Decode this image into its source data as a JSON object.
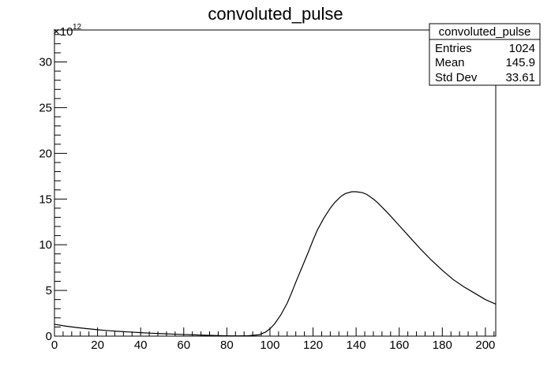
{
  "chart_data": {
    "type": "line",
    "title": "convoluted_pulse",
    "xlabel": "",
    "ylabel": "",
    "x_scale_exponent": "",
    "y_scale_label": {
      "base": "×10",
      "exponent": "12"
    },
    "xlim": [
      0,
      204.8
    ],
    "ylim": [
      0,
      33.5
    ],
    "y_unit_multiplier": 1000000000000.0,
    "x_ticks": [
      0,
      20,
      40,
      60,
      80,
      100,
      120,
      140,
      160,
      180,
      200
    ],
    "x_tick_labels": [
      "0",
      "20",
      "40",
      "60",
      "80",
      "100",
      "120",
      "140",
      "160",
      "180",
      "200"
    ],
    "y_ticks": [
      0,
      5,
      10,
      15,
      20,
      25,
      30
    ],
    "y_tick_labels": [
      "0",
      "5",
      "10",
      "15",
      "20",
      "25",
      "30"
    ],
    "grid": false,
    "legend": "none",
    "stats_box": {
      "title": "convoluted_pulse",
      "rows": [
        {
          "label": "Entries",
          "value": "1024"
        },
        {
          "label": "Mean",
          "value": "145.9"
        },
        {
          "label": "Std Dev",
          "value": "33.61"
        }
      ],
      "placement": "top-right"
    },
    "series": [
      {
        "x": [
          0,
          5,
          10,
          15,
          20,
          25,
          30,
          35,
          40,
          45,
          50,
          55,
          60,
          65,
          70,
          75,
          80,
          85,
          90,
          95,
          98,
          100,
          102,
          105,
          108,
          110,
          112,
          115,
          118,
          120,
          122,
          125,
          128,
          130,
          133,
          135,
          138,
          140,
          143,
          145,
          148,
          150,
          155,
          160,
          165,
          170,
          175,
          180,
          185,
          190,
          195,
          200,
          204.8
        ],
        "values": [
          1.3,
          1.1,
          0.95,
          0.82,
          0.7,
          0.6,
          0.52,
          0.45,
          0.38,
          0.32,
          0.27,
          0.22,
          0.18,
          0.14,
          0.1,
          0.07,
          0.04,
          0.02,
          0.05,
          0.15,
          0.45,
          0.8,
          1.3,
          2.3,
          3.6,
          4.7,
          5.9,
          7.6,
          9.3,
          10.5,
          11.6,
          12.9,
          14.0,
          14.6,
          15.3,
          15.6,
          15.8,
          15.8,
          15.7,
          15.5,
          15.0,
          14.6,
          13.4,
          12.1,
          10.8,
          9.5,
          8.3,
          7.2,
          6.2,
          5.4,
          4.7,
          4.0,
          3.5
        ]
      }
    ]
  }
}
